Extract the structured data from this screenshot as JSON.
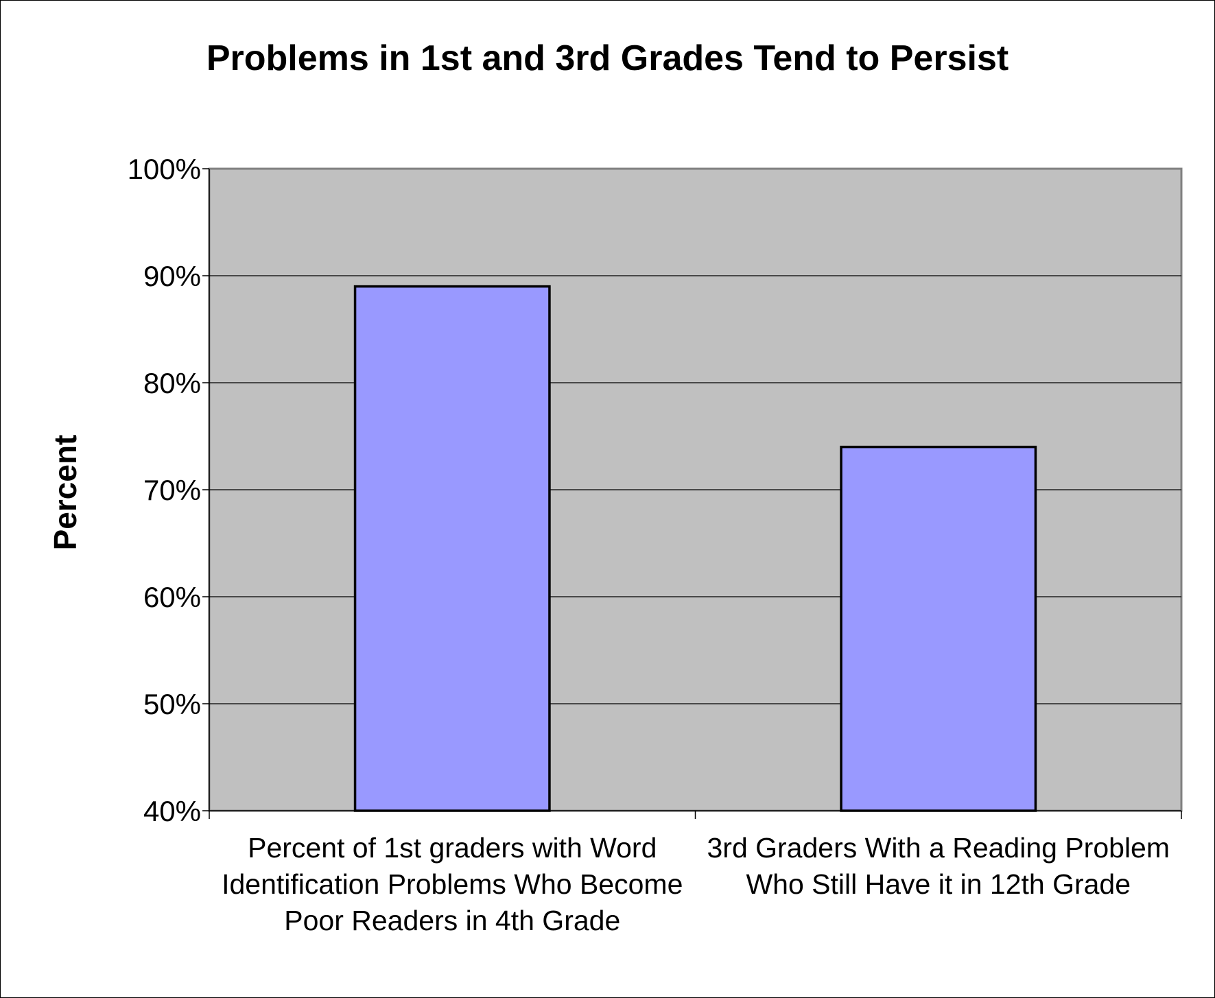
{
  "chart_data": {
    "type": "bar",
    "title": "Problems in 1st and 3rd Grades Tend to Persist",
    "xlabel": "",
    "ylabel": "Percent",
    "categories": [
      "Percent of 1st graders with Word Identification Problems Who Become Poor Readers in 4th Grade",
      "3rd Graders With a Reading Problem Who Still Have it in 12th Grade"
    ],
    "values": [
      89,
      74
    ],
    "ylim": [
      40,
      100
    ],
    "yticks": [
      40,
      50,
      60,
      70,
      80,
      90,
      100
    ],
    "ytick_labels": [
      "40%",
      "50%",
      "60%",
      "70%",
      "80%",
      "90%",
      "100%"
    ],
    "grid": true,
    "legend": "none",
    "colors": {
      "bar_fill": "#9999ff",
      "bar_stroke": "#000000",
      "plot_background": "#c0c0c0",
      "gridline": "#000000"
    }
  }
}
